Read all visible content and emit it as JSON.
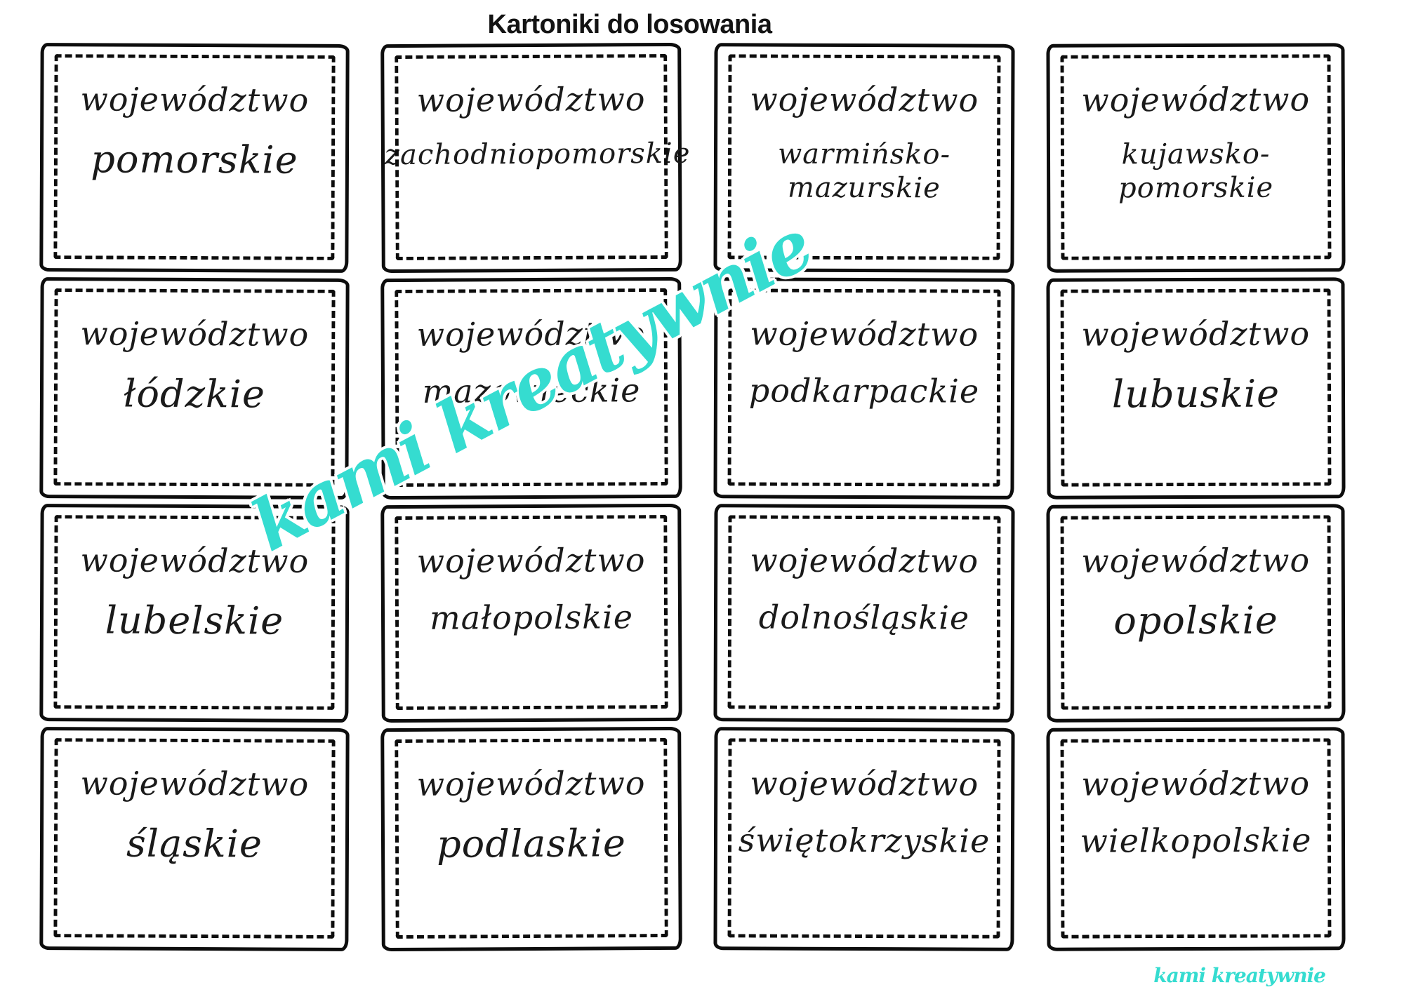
{
  "page": {
    "title": "Kartoniki do losowania"
  },
  "cards": [
    {
      "label": "województwo",
      "name": "pomorskie"
    },
    {
      "label": "województwo",
      "name": "zachodniopomorskie"
    },
    {
      "label": "województwo",
      "name": "warmińsko-mazurskie"
    },
    {
      "label": "województwo",
      "name": "kujawsko-pomorskie"
    },
    {
      "label": "województwo",
      "name": "łódzkie"
    },
    {
      "label": "województwo",
      "name": "mazowieckie"
    },
    {
      "label": "województwo",
      "name": "podkarpackie"
    },
    {
      "label": "województwo",
      "name": "lubuskie"
    },
    {
      "label": "województwo",
      "name": "lubelskie"
    },
    {
      "label": "województwo",
      "name": "małopolskie"
    },
    {
      "label": "województwo",
      "name": "dolnośląskie"
    },
    {
      "label": "województwo",
      "name": "opolskie"
    },
    {
      "label": "województwo",
      "name": "śląskie"
    },
    {
      "label": "województwo",
      "name": "podlaskie"
    },
    {
      "label": "województwo",
      "name": "świętokrzyskie"
    },
    {
      "label": "województwo",
      "name": "wielkopolskie"
    }
  ],
  "watermark": {
    "text": "kami kreatywnie",
    "footer_text": "kami kreatywnie",
    "color": "#35dcd0"
  },
  "style": {
    "card_border_color": "#0d0d0d",
    "text_color": "#1a1a1a"
  }
}
